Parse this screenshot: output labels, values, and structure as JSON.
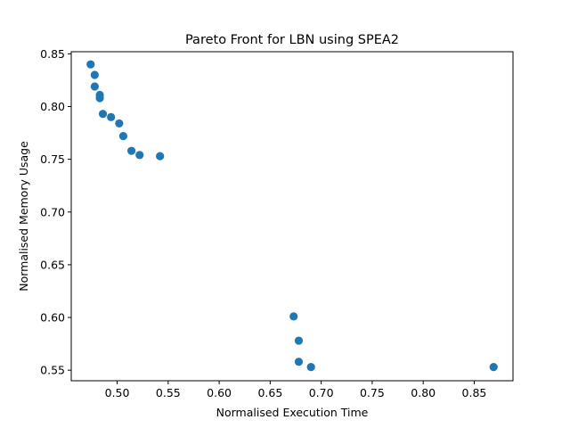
{
  "chart_data": {
    "type": "scatter",
    "title": "Pareto Front for LBN using SPEA2",
    "xlabel": "Normalised Execution Time",
    "ylabel": "Normalised Memory Usage",
    "xlim": [
      0.455,
      0.888
    ],
    "ylim": [
      0.54,
      0.852
    ],
    "xticks": [
      {
        "value": 0.5,
        "label": "0.50"
      },
      {
        "value": 0.55,
        "label": "0.55"
      },
      {
        "value": 0.6,
        "label": "0.60"
      },
      {
        "value": 0.65,
        "label": "0.65"
      },
      {
        "value": 0.7,
        "label": "0.70"
      },
      {
        "value": 0.75,
        "label": "0.75"
      },
      {
        "value": 0.8,
        "label": "0.80"
      },
      {
        "value": 0.85,
        "label": "0.85"
      }
    ],
    "yticks": [
      {
        "value": 0.55,
        "label": "0.55"
      },
      {
        "value": 0.6,
        "label": "0.60"
      },
      {
        "value": 0.65,
        "label": "0.65"
      },
      {
        "value": 0.7,
        "label": "0.70"
      },
      {
        "value": 0.75,
        "label": "0.75"
      },
      {
        "value": 0.8,
        "label": "0.80"
      },
      {
        "value": 0.85,
        "label": "0.85"
      }
    ],
    "grid": false,
    "marker_color": "#1f77b4",
    "points": [
      {
        "x": 0.474,
        "y": 0.84
      },
      {
        "x": 0.478,
        "y": 0.83
      },
      {
        "x": 0.478,
        "y": 0.819
      },
      {
        "x": 0.483,
        "y": 0.811
      },
      {
        "x": 0.483,
        "y": 0.808
      },
      {
        "x": 0.486,
        "y": 0.793
      },
      {
        "x": 0.494,
        "y": 0.79
      },
      {
        "x": 0.502,
        "y": 0.784
      },
      {
        "x": 0.506,
        "y": 0.772
      },
      {
        "x": 0.514,
        "y": 0.758
      },
      {
        "x": 0.522,
        "y": 0.754
      },
      {
        "x": 0.542,
        "y": 0.753
      },
      {
        "x": 0.673,
        "y": 0.601
      },
      {
        "x": 0.678,
        "y": 0.578
      },
      {
        "x": 0.678,
        "y": 0.558
      },
      {
        "x": 0.69,
        "y": 0.553
      },
      {
        "x": 0.869,
        "y": 0.553
      }
    ]
  }
}
